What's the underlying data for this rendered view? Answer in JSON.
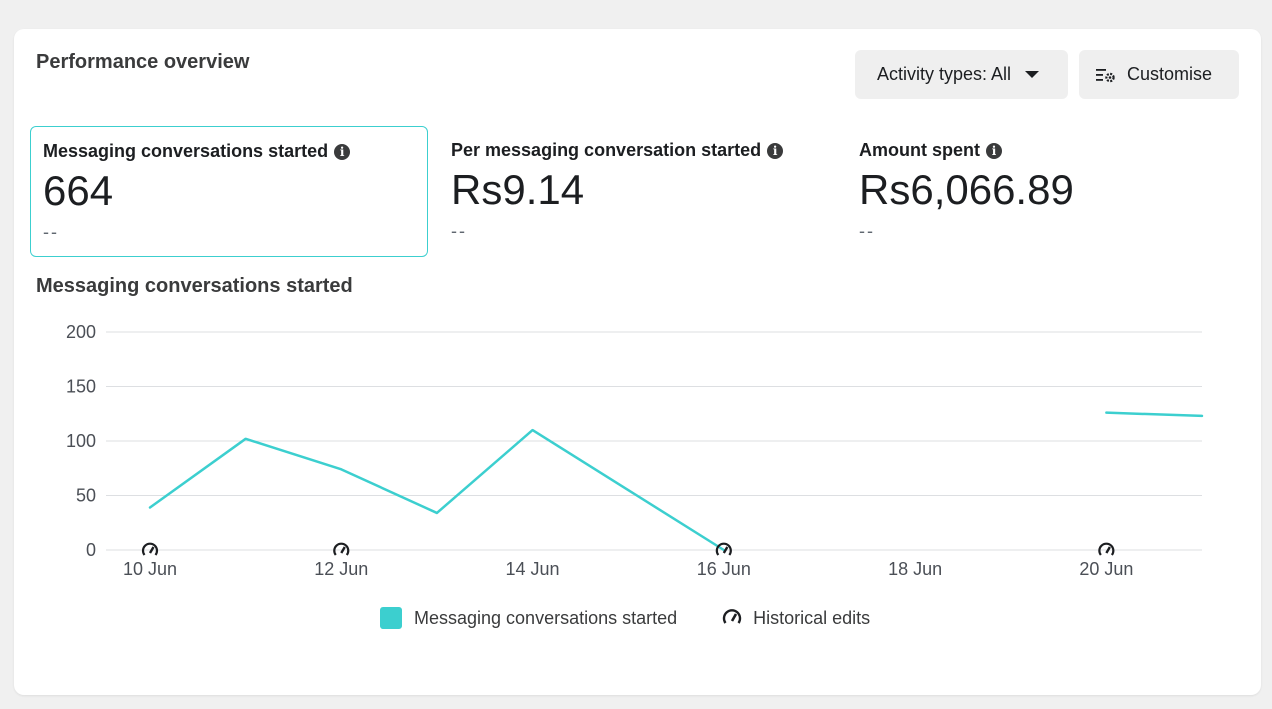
{
  "panel": {
    "title": "Performance overview",
    "activity_button_label": "Activity types: All",
    "customise_button_label": "Customise"
  },
  "metrics": [
    {
      "label": "Messaging conversations started",
      "value": "664",
      "delta": "--",
      "selected": true
    },
    {
      "label": "Per messaging conversation started",
      "value": "Rs9.14",
      "delta": "--",
      "selected": false
    },
    {
      "label": "Amount spent",
      "value": "Rs6,066.89",
      "delta": "--",
      "selected": false
    }
  ],
  "chart_title": "Messaging conversations started",
  "legend": {
    "series_label": "Messaging conversations started",
    "edits_label": "Historical edits"
  },
  "colors": {
    "accent": "#3ccfcf",
    "grid": "#dddfe2"
  },
  "icons": [
    "info-icon",
    "caret-down-icon",
    "customise-icon",
    "historical-edit-icon"
  ],
  "chart_data": {
    "type": "line",
    "x": [
      "10 Jun",
      "11 Jun",
      "12 Jun",
      "13 Jun",
      "14 Jun",
      "15 Jun",
      "16 Jun",
      "17 Jun",
      "18 Jun",
      "19 Jun",
      "20 Jun",
      "21 Jun"
    ],
    "x_tick_labels": [
      "10 Jun",
      "12 Jun",
      "14 Jun",
      "16 Jun",
      "18 Jun",
      "20 Jun"
    ],
    "series": [
      {
        "name": "Messaging conversations started",
        "values": [
          39,
          102,
          74,
          34,
          110,
          55,
          0,
          null,
          null,
          null,
          126,
          123
        ]
      }
    ],
    "ylim": [
      0,
      200
    ],
    "yticks": [
      0,
      50,
      100,
      150,
      200
    ],
    "historical_edits_at": [
      "10 Jun",
      "12 Jun",
      "16 Jun",
      "20 Jun"
    ],
    "grid": true,
    "legend_position": "bottom-center"
  }
}
